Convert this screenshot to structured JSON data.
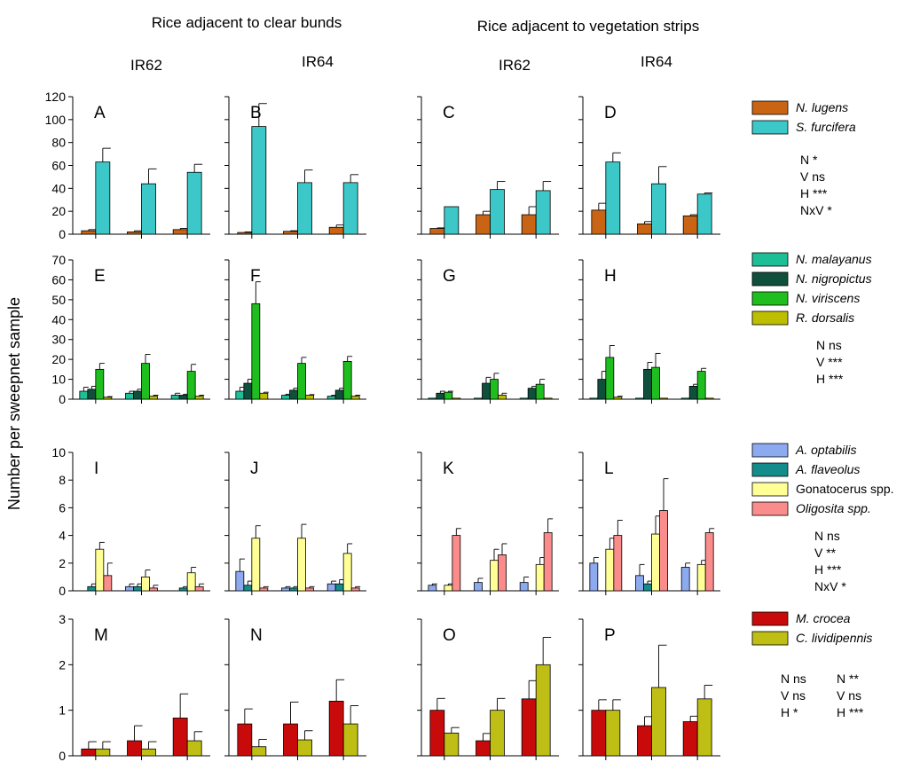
{
  "headers": {
    "left": "Rice adjacent to clear bunds",
    "right": "Rice adjacent to vegetation strips"
  },
  "col_labels": [
    "IR62",
    "IR64",
    "IR62",
    "IR64"
  ],
  "ylabel": "Number per sweepnet sample",
  "chart_data": [
    {
      "type": "bar",
      "row": 0,
      "ylim": [
        0,
        120
      ],
      "yticks": [
        "0",
        "20",
        "40",
        "60",
        "80",
        "100",
        "120"
      ],
      "colors": [
        "#C86414",
        "#3CC8C8"
      ],
      "legend": [
        {
          "name": "N. lugens",
          "italic": true
        },
        {
          "name": "S. furcifera",
          "italic": true
        }
      ],
      "stats": [
        [
          "N *",
          "V ns",
          "H ***",
          "NxV *"
        ]
      ],
      "panels": [
        {
          "label": "A",
          "groups": [
            [
              [
                3,
                1
              ],
              [
                63,
                12
              ]
            ],
            [
              [
                2,
                1
              ],
              [
                44,
                13
              ]
            ],
            [
              [
                4,
                1
              ],
              [
                54,
                7
              ]
            ]
          ]
        },
        {
          "label": "B",
          "groups": [
            [
              [
                1.5,
                0.5
              ],
              [
                94,
                20
              ]
            ],
            [
              [
                2.5,
                0.5
              ],
              [
                45,
                11
              ]
            ],
            [
              [
                6,
                2
              ],
              [
                45,
                7
              ]
            ]
          ]
        },
        {
          "label": "C",
          "groups": [
            [
              [
                5,
                0.5
              ],
              [
                24,
                0
              ]
            ],
            [
              [
                17,
                3
              ],
              [
                39,
                7
              ]
            ],
            [
              [
                17,
                7
              ],
              [
                38,
                8
              ]
            ]
          ]
        },
        {
          "label": "D",
          "groups": [
            [
              [
                21,
                6
              ],
              [
                63,
                8
              ]
            ],
            [
              [
                9,
                2
              ],
              [
                44,
                15
              ]
            ],
            [
              [
                16,
                1
              ],
              [
                35,
                1
              ]
            ]
          ]
        }
      ]
    },
    {
      "type": "bar",
      "row": 1,
      "ylim": [
        0,
        70
      ],
      "yticks": [
        "0",
        "10",
        "20",
        "30",
        "40",
        "50",
        "60",
        "70"
      ],
      "colors": [
        "#1EBE96",
        "#0F503C",
        "#1EBE1E",
        "#BEBE00"
      ],
      "legend": [
        {
          "name": "N. malayanus",
          "italic": true
        },
        {
          "name": "N. nigropictus",
          "italic": true
        },
        {
          "name": "N. viriscens",
          "italic": true
        },
        {
          "name": "R. dorsalis",
          "italic": true
        }
      ],
      "stats": [
        [
          "N ns",
          "V ***",
          "H ***"
        ]
      ],
      "panels": [
        {
          "label": "E",
          "groups": [
            [
              [
                4,
                2
              ],
              [
                5,
                1.5
              ],
              [
                15,
                3
              ],
              [
                1,
                0.3
              ]
            ],
            [
              [
                3,
                1
              ],
              [
                4,
                1
              ],
              [
                18,
                4.5
              ],
              [
                1.5,
                0.5
              ]
            ],
            [
              [
                2,
                1
              ],
              [
                2,
                0.5
              ],
              [
                14,
                3.5
              ],
              [
                1.5,
                0.5
              ]
            ]
          ]
        },
        {
          "label": "F",
          "groups": [
            [
              [
                4,
                2
              ],
              [
                8,
                2
              ],
              [
                48,
                11
              ],
              [
                3,
                0.5
              ]
            ],
            [
              [
                2,
                0.5
              ],
              [
                4.5,
                1
              ],
              [
                18,
                3
              ],
              [
                2,
                0.3
              ]
            ],
            [
              [
                1.5,
                0.5
              ],
              [
                4.5,
                1
              ],
              [
                19,
                2.5
              ],
              [
                1.5,
                0.5
              ]
            ]
          ]
        },
        {
          "label": "G",
          "groups": [
            [
              [
                0.5,
                0
              ],
              [
                3,
                1
              ],
              [
                3.5,
                0.5
              ],
              [
                0.5,
                0
              ]
            ],
            [
              [
                0.5,
                0
              ],
              [
                8,
                3
              ],
              [
                10,
                3
              ],
              [
                2,
                1
              ]
            ],
            [
              [
                0.5,
                0
              ],
              [
                5.5,
                1
              ],
              [
                7.5,
                2.5
              ],
              [
                0.5,
                0
              ]
            ]
          ]
        },
        {
          "label": "H",
          "groups": [
            [
              [
                0.5,
                0
              ],
              [
                10,
                4
              ],
              [
                21,
                6
              ],
              [
                1,
                0.5
              ]
            ],
            [
              [
                0.5,
                0
              ],
              [
                15,
                3.5
              ],
              [
                16,
                7
              ],
              [
                0.5,
                0
              ]
            ],
            [
              [
                0.5,
                0
              ],
              [
                6.5,
                1
              ],
              [
                14,
                1.5
              ],
              [
                0.5,
                0
              ]
            ]
          ]
        }
      ]
    },
    {
      "type": "bar",
      "row": 2,
      "ylim": [
        0,
        10
      ],
      "yticks": [
        "0",
        "2",
        "4",
        "6",
        "8",
        "10"
      ],
      "colors": [
        "#8CAAF0",
        "#148C8C",
        "#FFFF96",
        "#FA8C8C"
      ],
      "legend": [
        {
          "name": "A. optabilis",
          "italic": true
        },
        {
          "name": "A. flaveolus",
          "italic": true
        },
        {
          "name": "Gonatocerus spp.",
          "italic": false
        },
        {
          "name": "Oligosita spp.",
          "italic": true
        }
      ],
      "stats": [
        [
          "N ns",
          "V **",
          "H ***",
          "NxV *"
        ]
      ],
      "panels": [
        {
          "label": "I",
          "groups": [
            [
              [
                0,
                0
              ],
              [
                0.3,
                0.2
              ],
              [
                3,
                0.5
              ],
              [
                1.1,
                0.9
              ]
            ],
            [
              [
                0.3,
                0.2
              ],
              [
                0.3,
                0.2
              ],
              [
                1,
                0.5
              ],
              [
                0.2,
                0.2
              ]
            ],
            [
              [
                0,
                0
              ],
              [
                0.2,
                0.1
              ],
              [
                1.3,
                0.4
              ],
              [
                0.3,
                0.2
              ]
            ]
          ]
        },
        {
          "label": "J",
          "groups": [
            [
              [
                1.4,
                0.9
              ],
              [
                0.4,
                0.3
              ],
              [
                3.8,
                0.9
              ],
              [
                0.2,
                0.1
              ]
            ],
            [
              [
                0.2,
                0.1
              ],
              [
                0.2,
                0.1
              ],
              [
                3.8,
                1
              ],
              [
                0.2,
                0.1
              ]
            ],
            [
              [
                0.5,
                0.2
              ],
              [
                0.5,
                0.3
              ],
              [
                2.7,
                0.7
              ],
              [
                0.2,
                0.1
              ]
            ]
          ]
        },
        {
          "label": "K",
          "groups": [
            [
              [
                0.4,
                0.1
              ],
              [
                0,
                0
              ],
              [
                0.4,
                0.1
              ],
              [
                4,
                0.5
              ]
            ],
            [
              [
                0.6,
                0.3
              ],
              [
                0,
                0
              ],
              [
                2.2,
                0.8
              ],
              [
                2.6,
                0.8
              ]
            ],
            [
              [
                0.6,
                0.4
              ],
              [
                0,
                0
              ],
              [
                1.9,
                0.5
              ],
              [
                4.2,
                1
              ]
            ]
          ]
        },
        {
          "label": "L",
          "groups": [
            [
              [
                2,
                0.4
              ],
              [
                0,
                0
              ],
              [
                3,
                0.8
              ],
              [
                4,
                1.1
              ]
            ],
            [
              [
                1.1,
                0.8
              ],
              [
                0.5,
                0.2
              ],
              [
                4.1,
                1.3
              ],
              [
                5.8,
                2.3
              ]
            ],
            [
              [
                1.7,
                0.3
              ],
              [
                0,
                0
              ],
              [
                1.9,
                0.3
              ],
              [
                4.2,
                0.3
              ]
            ]
          ]
        }
      ]
    },
    {
      "type": "bar",
      "row": 3,
      "ylim": [
        0,
        3
      ],
      "yticks": [
        "0",
        "1",
        "2",
        "3"
      ],
      "colors": [
        "#C80A0A",
        "#BEBE14"
      ],
      "legend": [
        {
          "name": "M. crocea",
          "italic": true
        },
        {
          "name": "C. lividipennis",
          "italic": true
        }
      ],
      "stats": [
        [
          "N ns",
          "V ns",
          "H *"
        ],
        [
          "N **",
          "V ns",
          "H ***"
        ]
      ],
      "panels": [
        {
          "label": "M",
          "groups": [
            [
              [
                0.15,
                0.16
              ],
              [
                0.15,
                0.16
              ]
            ],
            [
              [
                0.33,
                0.33
              ],
              [
                0.15,
                0.16
              ]
            ],
            [
              [
                0.83,
                0.53
              ],
              [
                0.33,
                0.2
              ]
            ]
          ]
        },
        {
          "label": "N",
          "groups": [
            [
              [
                0.7,
                0.33
              ],
              [
                0.2,
                0.16
              ]
            ],
            [
              [
                0.7,
                0.48
              ],
              [
                0.35,
                0.2
              ]
            ],
            [
              [
                1.2,
                0.47
              ],
              [
                0.7,
                0.4
              ]
            ]
          ]
        },
        {
          "label": "O",
          "groups": [
            [
              [
                1,
                0.26
              ],
              [
                0.5,
                0.12
              ]
            ],
            [
              [
                0.33,
                0.16
              ],
              [
                1,
                0.26
              ]
            ],
            [
              [
                1.25,
                0.4
              ],
              [
                2,
                0.6
              ]
            ]
          ]
        },
        {
          "label": "P",
          "groups": [
            [
              [
                1,
                0.23
              ],
              [
                1,
                0.23
              ]
            ],
            [
              [
                0.66,
                0.2
              ],
              [
                1.5,
                0.93
              ]
            ],
            [
              [
                0.75,
                0.12
              ],
              [
                1.25,
                0.3
              ]
            ]
          ]
        }
      ]
    }
  ]
}
